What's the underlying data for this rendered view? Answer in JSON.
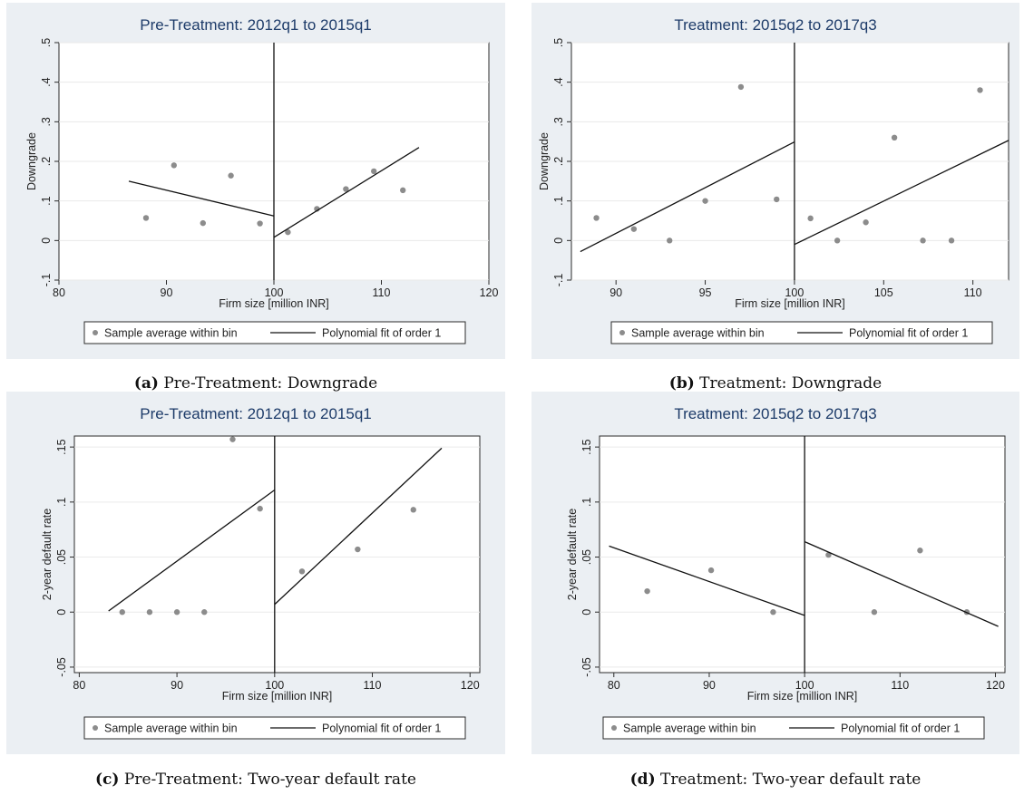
{
  "chart_data": [
    {
      "type": "scatter",
      "title": "Pre-Treatment: 2012q1 to 2015q1",
      "xlabel": "Firm size [million INR]",
      "ylabel": "Downgrade",
      "xlim": [
        80,
        120
      ],
      "ylim": [
        -0.1,
        0.5
      ],
      "xticks": [
        80,
        90,
        100,
        110,
        120
      ],
      "yticks": [
        -0.1,
        0,
        0.1,
        0.2,
        0.3,
        0.4,
        0.5
      ],
      "yticklabels": [
        "-.1",
        "0",
        ".1",
        ".2",
        ".3",
        ".4",
        ".5"
      ],
      "cutoff": 100,
      "grid": true,
      "series": [
        {
          "name": "Sample average within bin",
          "kind": "points",
          "x": [
            88.1,
            90.7,
            93.4,
            96.0,
            98.7,
            101.3,
            104.0,
            106.7,
            109.3,
            112.0
          ],
          "y": [
            0.057,
            0.19,
            0.044,
            0.164,
            0.043,
            0.021,
            0.08,
            0.13,
            0.175,
            0.127
          ]
        },
        {
          "name": "Polynomial fit of order 1",
          "kind": "fit",
          "segments": [
            [
              [
                86.5,
                0.15
              ],
              [
                100,
                0.062
              ]
            ],
            [
              [
                100,
                0.008
              ],
              [
                113.5,
                0.235
              ]
            ]
          ]
        }
      ],
      "legend": "bottom",
      "caption_label": "(a)",
      "caption_text": "Pre-Treatment: Downgrade"
    },
    {
      "type": "scatter",
      "title": "Treatment: 2015q2 to 2017q3",
      "xlabel": "Firm size [million INR]",
      "ylabel": "Downgrade",
      "xlim": [
        87.5,
        112
      ],
      "ylim": [
        -0.1,
        0.5
      ],
      "xticks": [
        90,
        95,
        100,
        105,
        110
      ],
      "yticks": [
        -0.1,
        0,
        0.1,
        0.2,
        0.3,
        0.4,
        0.5
      ],
      "yticklabels": [
        "-.1",
        "0",
        ".1",
        ".2",
        ".3",
        ".4",
        ".5"
      ],
      "cutoff": 100,
      "grid": true,
      "series": [
        {
          "name": "Sample average within bin",
          "kind": "points",
          "x": [
            88.9,
            91.0,
            93.0,
            95.0,
            97.0,
            99.0,
            100.9,
            102.4,
            104.0,
            105.6,
            107.2,
            108.8,
            110.4
          ],
          "y": [
            0.057,
            0.029,
            0.0,
            0.1,
            0.388,
            0.104,
            0.056,
            0.0,
            0.046,
            0.26,
            0.0,
            0.0,
            0.38
          ]
        },
        {
          "name": "Polynomial fit of order 1",
          "kind": "fit",
          "segments": [
            [
              [
                88,
                -0.028
              ],
              [
                100,
                0.249
              ]
            ],
            [
              [
                100,
                -0.01
              ],
              [
                112,
                0.253
              ]
            ]
          ]
        }
      ],
      "legend": "bottom",
      "caption_label": "(b)",
      "caption_text": "Treatment: Downgrade"
    },
    {
      "type": "scatter",
      "title": "Pre-Treatment: 2012q1 to 2015q1",
      "xlabel": "Firm size [million INR]",
      "ylabel": "2-year default rate",
      "xlim": [
        79.5,
        121
      ],
      "ylim": [
        -0.055,
        0.16
      ],
      "xticks": [
        80,
        90,
        100,
        110,
        120
      ],
      "yticks": [
        -0.05,
        0,
        0.05,
        0.1,
        0.15
      ],
      "yticklabels": [
        "-.05",
        "0",
        ".05",
        ".1",
        ".15"
      ],
      "cutoff": 100,
      "grid": true,
      "series": [
        {
          "name": "Sample average within bin",
          "kind": "points",
          "x": [
            84.4,
            87.2,
            90.0,
            92.8,
            95.7,
            98.5,
            102.8,
            108.5,
            114.2
          ],
          "y": [
            0.0,
            0.0,
            0.0,
            0.0,
            0.157,
            0.094,
            0.037,
            0.057,
            0.093
          ]
        },
        {
          "name": "Polynomial fit of order 1",
          "kind": "fit",
          "segments": [
            [
              [
                83,
                0.001
              ],
              [
                100,
                0.111
              ]
            ],
            [
              [
                100,
                0.007
              ],
              [
                117.1,
                0.149
              ]
            ]
          ]
        }
      ],
      "legend": "bottom",
      "caption_label": "(c)",
      "caption_text": "Pre-Treatment: Two-year default rate"
    },
    {
      "type": "scatter",
      "title": "Treatment: 2015q2 to 2017q3",
      "xlabel": "Firm size [million INR]",
      "ylabel": "2-year default rate",
      "xlim": [
        78.5,
        121
      ],
      "ylim": [
        -0.055,
        0.16
      ],
      "xticks": [
        80,
        90,
        100,
        110,
        120
      ],
      "yticks": [
        -0.05,
        0,
        0.05,
        0.1,
        0.15
      ],
      "yticklabels": [
        "-.05",
        "0",
        ".05",
        ".1",
        ".15"
      ],
      "cutoff": 100,
      "grid": true,
      "series": [
        {
          "name": "Sample average within bin",
          "kind": "points",
          "x": [
            83.5,
            90.2,
            96.7,
            102.5,
            107.3,
            112.1,
            117.0
          ],
          "y": [
            0.019,
            0.038,
            0.0,
            0.052,
            0.0,
            0.056,
            0.0
          ]
        },
        {
          "name": "Polynomial fit of order 1",
          "kind": "fit",
          "segments": [
            [
              [
                79.5,
                0.06
              ],
              [
                100,
                -0.003
              ]
            ],
            [
              [
                100,
                0.064
              ],
              [
                120.3,
                -0.013
              ]
            ]
          ]
        }
      ],
      "legend": "bottom",
      "caption_label": "(d)",
      "caption_text": "Treatment: Two-year default rate"
    }
  ],
  "colors": {
    "panel_bg": "#ebeff3",
    "plot_bg": "#ffffff",
    "title": "#1d3b69",
    "point": "#8c8c8c",
    "line": "#111111",
    "grid": "#eaeaea"
  }
}
